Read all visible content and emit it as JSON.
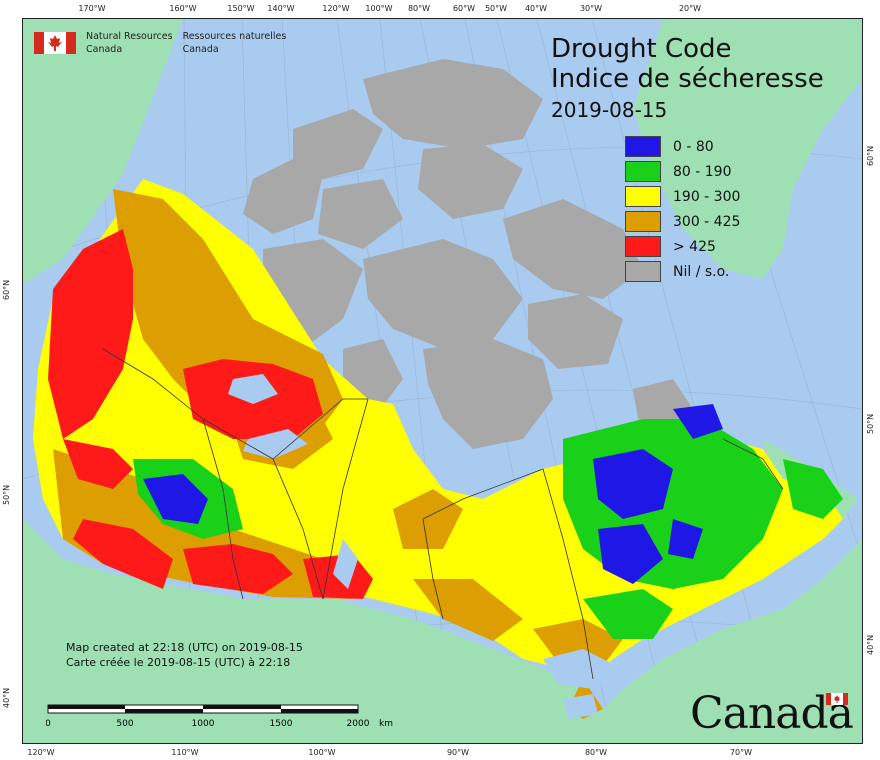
{
  "agency": {
    "name_en_line1": "Natural Resources",
    "name_en_line2": "Canada",
    "name_fr_line1": "Ressources naturelles",
    "name_fr_line2": "Canada"
  },
  "title": {
    "en": "Drought Code",
    "fr": "Indice de sécheresse",
    "date": "2019-08-15"
  },
  "legend": [
    {
      "label": "0 - 80",
      "color": "#1f17e6"
    },
    {
      "label": "80 - 190",
      "color": "#19d119"
    },
    {
      "label": "190 - 300",
      "color": "#ffff00"
    },
    {
      "label": "300 - 425",
      "color": "#dc9e00"
    },
    {
      "label": "> 425",
      "color": "#ff1a1a"
    },
    {
      "label": "Nil / s.o.",
      "color": "#a8a8a8"
    }
  ],
  "credit": {
    "line_en": "Map created at 22:18 (UTC) on 2019-08-15",
    "line_fr": "Carte créée le 2019-08-15 (UTC) à 22:18"
  },
  "scale": {
    "labels": [
      "0",
      "500",
      "1000",
      "1500",
      "2000"
    ],
    "unit": "km"
  },
  "wordmark": "Canada",
  "graticule": {
    "top": [
      "170°W",
      "160°W",
      "150°W",
      "140°W",
      "120°W",
      "100°W",
      "80°W",
      "60°W",
      "50°W",
      "40°W",
      "30°W",
      "20°W"
    ],
    "bottom": [
      "120°W",
      "110°W",
      "100°W",
      "90°W",
      "80°W",
      "70°W"
    ],
    "left": [
      "60°N",
      "50°N",
      "40°N"
    ],
    "right": [
      "60°N",
      "50°N",
      "40°N"
    ]
  },
  "colors": {
    "ocean": "#a9cbef",
    "land_outside": "#9ee0b4",
    "nil": "#a8a8a8"
  }
}
